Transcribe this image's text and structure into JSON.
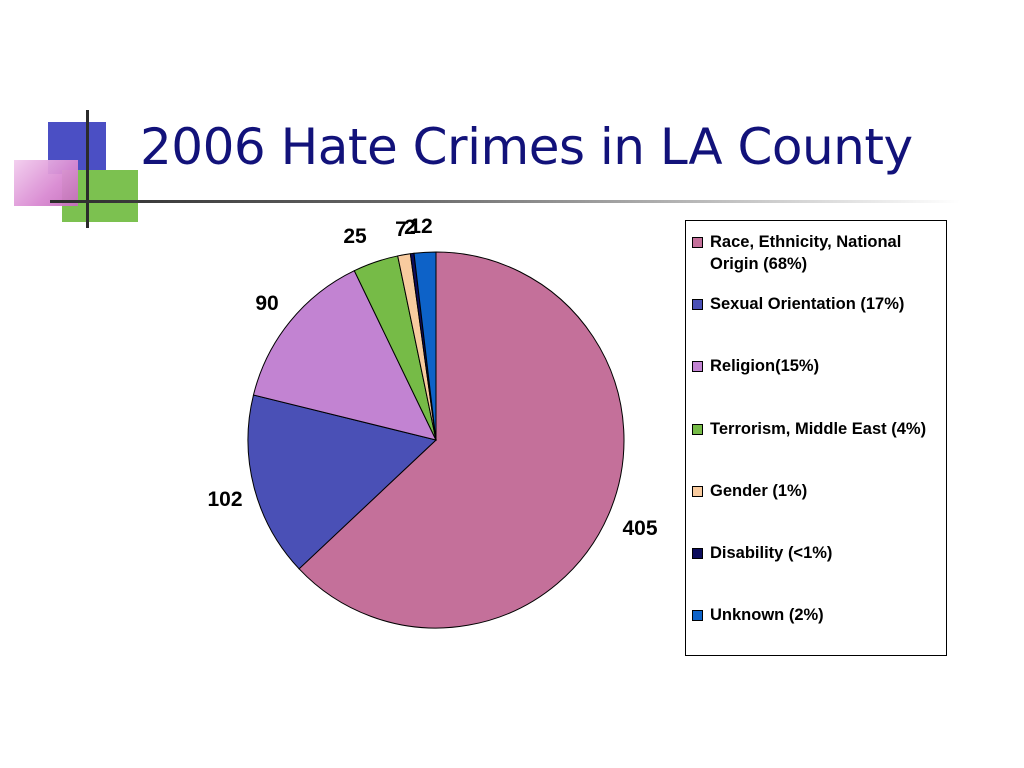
{
  "slide": {
    "title": "2006 Hate Crimes in LA County"
  },
  "colors": {
    "title": "#12127a",
    "accent_blue": "#4b4fc4",
    "accent_green": "#7cc150",
    "accent_pink": "#d98ad2"
  },
  "chart_data": {
    "type": "pie",
    "title": "",
    "start_angle_deg": 0,
    "direction": "clockwise",
    "legend_position": "right",
    "slices": [
      {
        "label": "Race, Ethnicity, National Origin (68%)",
        "value": 405,
        "data_label": "405",
        "color": "#c4709a"
      },
      {
        "label": "Sexual Orientation (17%)",
        "value": 102,
        "data_label": "102",
        "color": "#4a50b6"
      },
      {
        "label": "Religion(15%)",
        "value": 90,
        "data_label": "90",
        "color": "#c283d2"
      },
      {
        "label": "Terrorism, Middle East (4%)",
        "value": 25,
        "data_label": "25",
        "color": "#76bb47"
      },
      {
        "label": "Gender (1%)",
        "value": 7,
        "data_label": "7",
        "color": "#f8cb9f"
      },
      {
        "label": "Disability (<1%)",
        "value": 2,
        "data_label": "2",
        "color": "#0c0c5c"
      },
      {
        "label": "Unknown (2%)",
        "value": 12,
        "data_label": "12",
        "color": "#0d62c8"
      }
    ]
  }
}
